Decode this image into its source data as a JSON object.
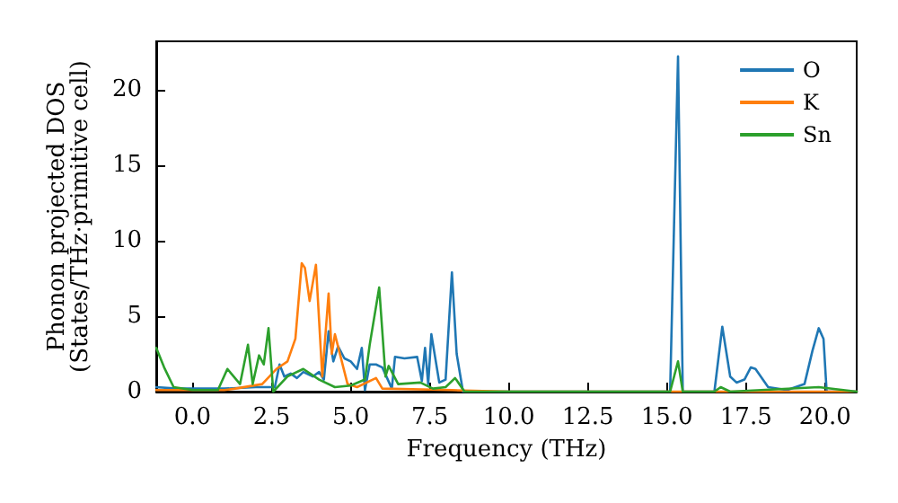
{
  "chart_data": {
    "type": "line",
    "xlabel": "Frequency (THz)",
    "ylabel": "Phonon projected DOS\n(States/THz·primitive cell)",
    "xlim": [
      -1.15,
      21
    ],
    "ylim": [
      0,
      23.2
    ],
    "xticks": [
      {
        "value": 0,
        "label": "0.0"
      },
      {
        "value": 2.5,
        "label": "2.5"
      },
      {
        "value": 5,
        "label": "5.0"
      },
      {
        "value": 7.5,
        "label": "7.5"
      },
      {
        "value": 10,
        "label": "10.0"
      },
      {
        "value": 12.5,
        "label": "12.5"
      },
      {
        "value": 15,
        "label": "15.0"
      },
      {
        "value": 17.5,
        "label": "17.5"
      },
      {
        "value": 20,
        "label": "20.0"
      }
    ],
    "yticks": [
      0,
      5,
      10,
      15,
      20
    ],
    "legend": "top right",
    "grid": false,
    "marker": "none",
    "line_style": "solid",
    "series": [
      {
        "name": "O",
        "color": "#1f77b4",
        "x": [
          -1.15,
          -0.5,
          0,
          1,
          2,
          2.6,
          2.75,
          2.9,
          3.1,
          3.3,
          3.5,
          3.8,
          4.0,
          4.15,
          4.3,
          4.45,
          4.6,
          4.8,
          5.0,
          5.2,
          5.35,
          5.45,
          5.6,
          5.8,
          6.0,
          6.3,
          6.4,
          6.7,
          7.1,
          7.25,
          7.35,
          7.45,
          7.55,
          7.8,
          8.0,
          8.2,
          8.35,
          8.55,
          10,
          12.5,
          15.1,
          15.35,
          15.5,
          16.5,
          16.75,
          17.0,
          17.2,
          17.45,
          17.65,
          17.8,
          18.2,
          18.8,
          19.35,
          19.6,
          19.8,
          19.95,
          20.05,
          21
        ],
        "values": [
          0.3,
          0.2,
          0.2,
          0.2,
          0.3,
          0.3,
          1.8,
          1.0,
          1.2,
          0.9,
          1.3,
          1.0,
          1.3,
          0.8,
          4.0,
          2.0,
          3.0,
          2.2,
          2.0,
          1.5,
          2.9,
          0.1,
          1.8,
          1.8,
          1.6,
          0.2,
          2.3,
          2.2,
          2.3,
          0.7,
          2.9,
          0.5,
          3.8,
          0.6,
          0.8,
          7.9,
          2.5,
          0,
          0,
          0,
          0,
          22.2,
          0,
          0,
          4.3,
          1.0,
          0.6,
          0.8,
          1.6,
          1.5,
          0.3,
          0.1,
          0.5,
          2.7,
          4.2,
          3.5,
          0,
          0
        ]
      },
      {
        "name": "K",
        "color": "#ff7f0e",
        "x": [
          -1.15,
          0,
          1,
          1.35,
          2.2,
          2.65,
          3.0,
          3.25,
          3.45,
          3.55,
          3.7,
          3.9,
          4.1,
          4.3,
          4.4,
          4.5,
          4.9,
          5.2,
          5.8,
          6.0,
          8.2,
          10,
          15.35,
          21
        ],
        "values": [
          0.1,
          0.1,
          0.1,
          0.2,
          0.5,
          1.5,
          2.0,
          3.5,
          8.5,
          8.2,
          6.0,
          8.4,
          1.0,
          6.5,
          2.5,
          3.8,
          0.5,
          0.3,
          0.9,
          0.2,
          0.1,
          0,
          0,
          0
        ]
      },
      {
        "name": "Sn",
        "color": "#2ca02c",
        "x": [
          -1.15,
          -0.9,
          -0.6,
          0,
          0.8,
          1.1,
          1.5,
          1.75,
          1.9,
          2.1,
          2.25,
          2.4,
          2.55,
          3.0,
          3.5,
          4.0,
          4.5,
          5.0,
          5.45,
          5.6,
          5.9,
          6.1,
          6.2,
          6.5,
          7.2,
          7.6,
          8.0,
          8.3,
          8.6,
          10,
          15.1,
          15.35,
          15.5,
          16.5,
          16.7,
          17,
          19.8,
          21
        ],
        "values": [
          2.9,
          1.6,
          0.3,
          0.1,
          0.1,
          1.5,
          0.5,
          3.1,
          0.5,
          2.4,
          1.8,
          4.2,
          0,
          1.0,
          1.5,
          0.8,
          0.3,
          0.4,
          0.8,
          3.1,
          6.9,
          1.0,
          1.7,
          0.5,
          0.6,
          0.2,
          0.3,
          0.9,
          0,
          0,
          0,
          2.0,
          0,
          0,
          0.3,
          0,
          0.3,
          0
        ]
      }
    ]
  }
}
